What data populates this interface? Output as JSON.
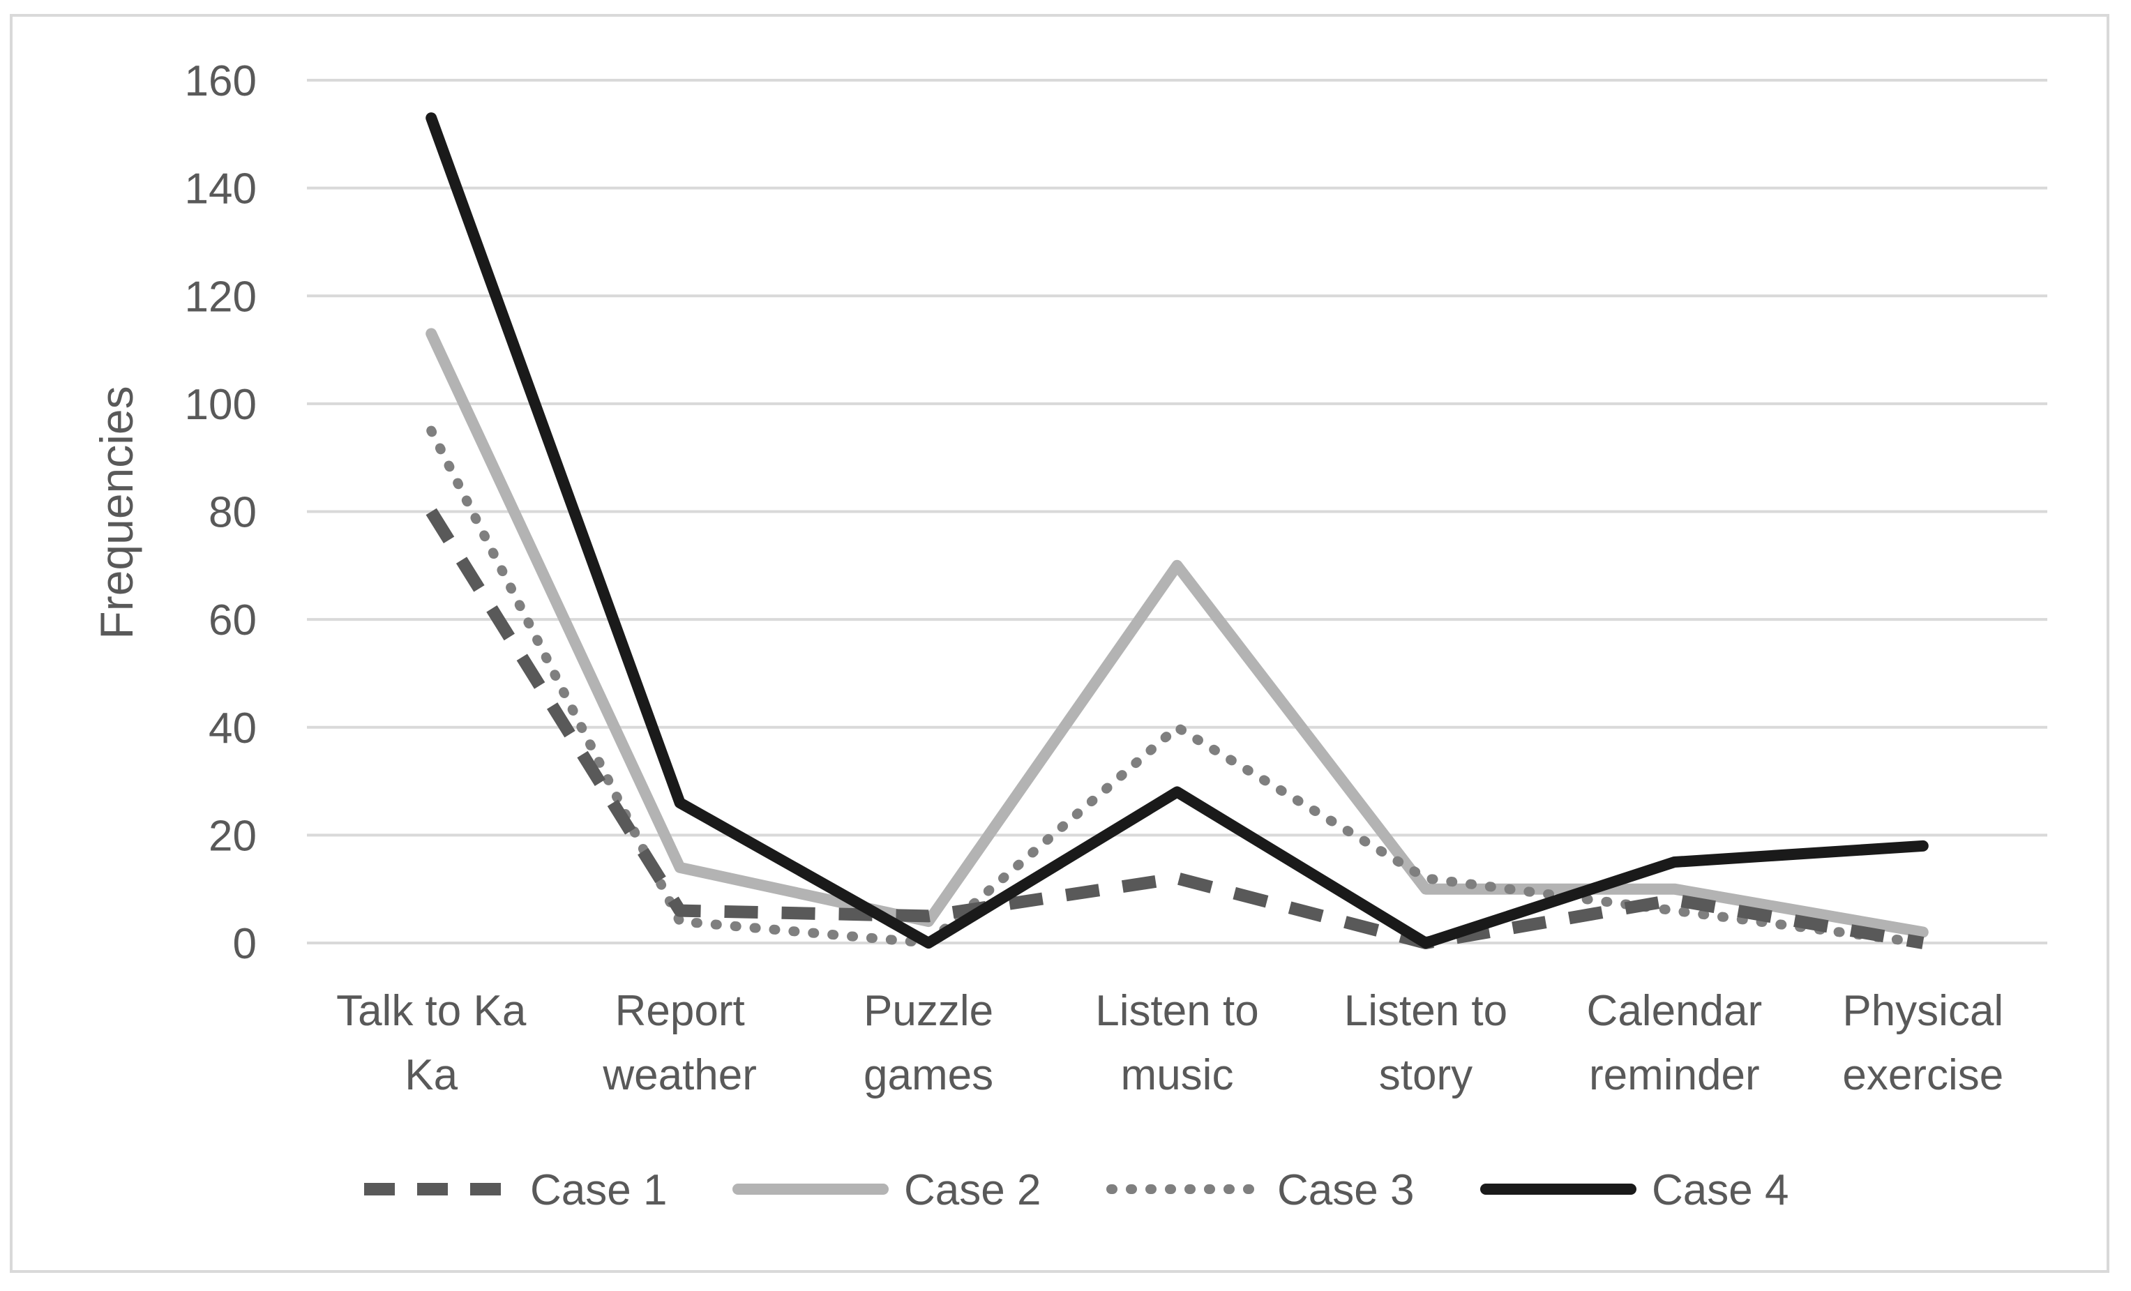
{
  "chart_data": {
    "type": "line",
    "title": "",
    "xlabel": "",
    "ylabel": "Frequencies",
    "ylim": [
      0,
      160
    ],
    "yticks": [
      0,
      20,
      40,
      60,
      80,
      100,
      120,
      140,
      160
    ],
    "grid": true,
    "legend_position": "bottom",
    "categories": [
      [
        "Talk to Ka",
        "Ka"
      ],
      [
        "Report",
        "weather"
      ],
      [
        "Puzzle",
        "games"
      ],
      [
        "Listen to",
        "music"
      ],
      [
        "Listen to",
        "story"
      ],
      [
        "Calendar",
        "reminder"
      ],
      [
        "Physical",
        "exercise"
      ]
    ],
    "series": [
      {
        "name": "Case 1",
        "values": [
          80,
          6,
          5,
          12,
          0,
          8,
          0
        ],
        "color": "#595959",
        "style": "dashed"
      },
      {
        "name": "Case 2",
        "values": [
          113,
          14,
          4,
          70,
          10,
          10,
          2
        ],
        "color": "#b3b3b3",
        "style": "solid"
      },
      {
        "name": "Case 3",
        "values": [
          95,
          4,
          0,
          40,
          12,
          6,
          0
        ],
        "color": "#7f7f7f",
        "style": "dotted"
      },
      {
        "name": "Case 4",
        "values": [
          153,
          26,
          0,
          28,
          0,
          15,
          18
        ],
        "color": "#1a1a1a",
        "style": "solid"
      }
    ]
  }
}
